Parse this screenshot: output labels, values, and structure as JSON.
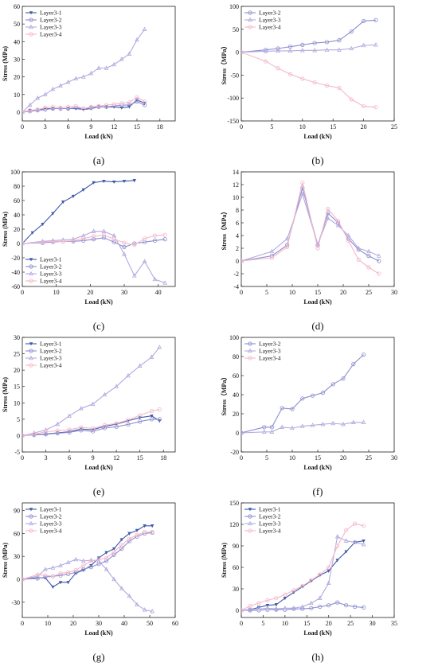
{
  "colors": {
    "Layer3-1": "#3f5aa8",
    "Layer3-2": "#8c8ed0",
    "Layer3-3": "#b3abe0",
    "Layer3-4": "#f4b8cb"
  },
  "chart_data": [
    {
      "panel": "(a)",
      "type": "line",
      "xlabel": "Load (kN)",
      "ylabel": "Stress (MPa)",
      "xlim": [
        0,
        20
      ],
      "ylim": [
        -5,
        60
      ],
      "xticks": [
        0,
        3,
        6,
        9,
        12,
        15,
        18
      ],
      "yticks": [
        0,
        10,
        20,
        30,
        40,
        50,
        60
      ],
      "legend": "top-left",
      "series": [
        {
          "name": "Layer3-1",
          "x": [
            0,
            1,
            2,
            3,
            4,
            5,
            6,
            7,
            8,
            9,
            10,
            11,
            12,
            13,
            14,
            15,
            16
          ],
          "y": [
            0,
            1,
            1,
            2,
            2,
            2,
            2,
            2,
            1.5,
            2,
            3,
            3,
            3,
            2.5,
            3,
            7,
            5
          ]
        },
        {
          "name": "Layer3-2",
          "x": [
            0,
            1,
            2,
            3,
            4,
            5,
            6,
            7,
            8,
            9,
            10,
            11,
            12,
            13,
            14,
            15,
            16
          ],
          "y": [
            0,
            0.5,
            1,
            1.5,
            2,
            2,
            2,
            2.5,
            2,
            2.5,
            3,
            3,
            3.5,
            4,
            4,
            6,
            4
          ]
        },
        {
          "name": "Layer3-3",
          "x": [
            0,
            1,
            2,
            3,
            4,
            5,
            6,
            7,
            8,
            9,
            10,
            11,
            12,
            13,
            14,
            15,
            16
          ],
          "y": [
            0,
            4,
            8,
            10,
            13,
            15,
            17,
            19,
            20,
            22,
            25,
            25,
            27,
            30,
            33,
            41,
            47
          ]
        },
        {
          "name": "Layer3-4",
          "x": [
            0,
            1,
            2,
            3,
            4,
            5,
            6,
            7,
            8,
            9,
            10,
            11,
            12,
            13,
            14,
            15,
            16
          ],
          "y": [
            0,
            1,
            1.5,
            2.5,
            3,
            2.5,
            3,
            3.5,
            2,
            3,
            3.5,
            4,
            4.5,
            5,
            5.5,
            8.5,
            6
          ]
        }
      ]
    },
    {
      "panel": "(b)",
      "type": "line",
      "xlabel": "Load (kN)",
      "ylabel": "Stress（MPa）",
      "xlim": [
        0,
        25
      ],
      "ylim": [
        -150,
        100
      ],
      "xticks": [
        0,
        5,
        10,
        15,
        20,
        25
      ],
      "yticks": [
        -150,
        -100,
        -50,
        0,
        50,
        100
      ],
      "legend": "top-left",
      "series": [
        {
          "name": "Layer3-2",
          "x": [
            0,
            4,
            6,
            8,
            10,
            12,
            14,
            16,
            18,
            20,
            22
          ],
          "y": [
            0,
            5,
            8,
            12,
            16,
            20,
            22,
            26,
            45,
            68,
            70
          ]
        },
        {
          "name": "Layer3-3",
          "x": [
            0,
            4,
            6,
            8,
            10,
            12,
            14,
            16,
            18,
            20,
            22
          ],
          "y": [
            0,
            2,
            3,
            3,
            4,
            4,
            5,
            5,
            8,
            15,
            16
          ]
        },
        {
          "name": "Layer3-4",
          "x": [
            0,
            4,
            6,
            8,
            10,
            12,
            14,
            16,
            18,
            20,
            22
          ],
          "y": [
            0,
            -20,
            -35,
            -48,
            -58,
            -66,
            -73,
            -78,
            -103,
            -118,
            -120
          ]
        }
      ]
    },
    {
      "panel": "(c)",
      "type": "line",
      "xlabel": "Load (kN)",
      "ylabel": "Stress (MPa)",
      "xlim": [
        0,
        45
      ],
      "ylim": [
        -60,
        100
      ],
      "xticks": [
        0,
        10,
        20,
        30,
        40
      ],
      "yticks": [
        -60,
        -40,
        -20,
        0,
        20,
        40,
        60,
        80,
        100
      ],
      "legend": "bottom-left",
      "series": [
        {
          "name": "Layer3-1",
          "x": [
            0,
            3,
            6,
            9,
            12,
            15,
            18,
            21,
            24,
            27,
            30,
            33
          ],
          "y": [
            0,
            15,
            27,
            42,
            58,
            66,
            75,
            85,
            87,
            86,
            87,
            88
          ]
        },
        {
          "name": "Layer3-2",
          "x": [
            0,
            6,
            9,
            12,
            15,
            18,
            21,
            24,
            27,
            30,
            33,
            36,
            39,
            42
          ],
          "y": [
            0,
            1,
            2,
            3,
            3,
            4,
            6,
            8,
            2,
            -5,
            0,
            2,
            4,
            6
          ]
        },
        {
          "name": "Layer3-3",
          "x": [
            0,
            6,
            9,
            12,
            15,
            18,
            21,
            24,
            27,
            30,
            33,
            36,
            39,
            42
          ],
          "y": [
            0,
            3,
            4,
            5,
            6,
            11,
            17,
            17,
            11,
            -15,
            -45,
            -25,
            -50,
            -55
          ]
        },
        {
          "name": "Layer3-4",
          "x": [
            0,
            6,
            9,
            12,
            15,
            18,
            21,
            24,
            27,
            30,
            33,
            36,
            39,
            42
          ],
          "y": [
            0,
            2,
            3,
            3,
            4,
            7,
            10,
            12,
            6,
            1,
            -2,
            7,
            11,
            12
          ]
        }
      ]
    },
    {
      "panel": "(d)",
      "type": "line",
      "xlabel": "Load (kN)",
      "ylabel": "Stress（MPa）",
      "xlim": [
        0,
        30
      ],
      "ylim": [
        -4,
        14
      ],
      "xticks": [
        0,
        5,
        10,
        15,
        20,
        25,
        30
      ],
      "yticks": [
        -4,
        -2,
        0,
        2,
        4,
        6,
        8,
        10,
        12,
        14
      ],
      "legend": "none",
      "series": [
        {
          "name": "Layer3-2",
          "x": [
            0,
            6,
            9,
            12,
            15,
            17,
            19,
            21,
            23,
            25,
            27
          ],
          "y": [
            0,
            0.8,
            2.5,
            11.5,
            2.5,
            7.5,
            6,
            3.5,
            1.8,
            0.8,
            0
          ]
        },
        {
          "name": "Layer3-3",
          "x": [
            0,
            6,
            9,
            12,
            15,
            17,
            19,
            21,
            23,
            25,
            27
          ],
          "y": [
            0,
            1.5,
            3.5,
            10.5,
            2.6,
            6.7,
            5.6,
            4,
            2,
            1.5,
            0.8
          ]
        },
        {
          "name": "Layer3-4",
          "x": [
            0,
            6,
            9,
            12,
            15,
            17,
            19,
            21,
            23,
            25,
            27
          ],
          "y": [
            0,
            0.5,
            2.2,
            12.3,
            2,
            8.2,
            6.3,
            3.2,
            0.2,
            -1,
            -2
          ]
        }
      ]
    },
    {
      "panel": "(e)",
      "type": "line",
      "xlabel": "Load (kN)",
      "ylabel": "Stress (MPa)",
      "xlim": [
        0,
        19.5
      ],
      "ylim": [
        -5,
        30
      ],
      "xticks": [
        0,
        3,
        6,
        9,
        12,
        15,
        18
      ],
      "yticks": [
        -5,
        0,
        5,
        10,
        15,
        20,
        25,
        30
      ],
      "legend": "top-left",
      "series": [
        {
          "name": "Layer3-1",
          "x": [
            0,
            1.5,
            3,
            4.5,
            6,
            7.5,
            9,
            10.5,
            12,
            13.5,
            15,
            16.5,
            17.5
          ],
          "y": [
            0,
            0.3,
            0.5,
            0.8,
            1.2,
            2,
            1.8,
            2.8,
            3.5,
            4.5,
            5.5,
            6,
            4.5
          ]
        },
        {
          "name": "Layer3-2",
          "x": [
            0,
            1.5,
            3,
            4.5,
            6,
            7.5,
            9,
            10.5,
            12,
            13.5,
            15,
            16.5,
            17.5
          ],
          "y": [
            0,
            0.2,
            0.4,
            0.7,
            1,
            1.6,
            1.3,
            2.3,
            2.7,
            3.4,
            4.3,
            5,
            5
          ]
        },
        {
          "name": "Layer3-3",
          "x": [
            0,
            1.5,
            3,
            4.5,
            6,
            7.5,
            9,
            10.5,
            12,
            13.5,
            15,
            16.5,
            17.5
          ],
          "y": [
            0,
            0.8,
            1.7,
            3.5,
            6,
            8.3,
            9.6,
            12.5,
            15,
            18.3,
            21.3,
            24,
            27
          ]
        },
        {
          "name": "Layer3-4",
          "x": [
            0,
            1.5,
            3,
            4.5,
            6,
            7.5,
            9,
            10.5,
            12,
            13.5,
            15,
            16.5,
            17.5
          ],
          "y": [
            0,
            0.4,
            1.2,
            1.5,
            1.8,
            2.5,
            2.2,
            3.2,
            3.7,
            4.8,
            6.2,
            7.5,
            8
          ]
        }
      ]
    },
    {
      "panel": "(f)",
      "type": "line",
      "xlabel": "Load (kN)",
      "ylabel": "Stress（MPa）",
      "xlim": [
        0,
        30
      ],
      "ylim": [
        -20,
        100
      ],
      "xticks": [
        0,
        5,
        10,
        15,
        20,
        25,
        30
      ],
      "yticks": [
        -20,
        0,
        20,
        40,
        60,
        80,
        100
      ],
      "legend": "top-left",
      "series": [
        {
          "name": "Layer3-2",
          "x": [
            0,
            4.5,
            6,
            8,
            10,
            12,
            14,
            16,
            18,
            20,
            22,
            24
          ],
          "y": [
            0,
            6,
            6,
            26,
            25,
            36,
            39,
            42,
            51,
            57,
            72,
            82
          ]
        },
        {
          "name": "Layer3-3",
          "x": [
            0,
            4.5,
            6,
            8,
            10,
            12,
            14,
            16,
            18,
            20,
            22,
            24
          ],
          "y": [
            0,
            1,
            1,
            6,
            5,
            7,
            8,
            9,
            10,
            9,
            11,
            11
          ]
        },
        {
          "name": "Layer3-4",
          "x": [],
          "y": []
        }
      ]
    },
    {
      "panel": "(g)",
      "type": "line",
      "xlabel": "Load (kN)",
      "ylabel": "Stress (MPa)",
      "xlim": [
        0,
        60
      ],
      "ylim": [
        -50,
        100
      ],
      "xticks": [
        0,
        10,
        20,
        30,
        40,
        50,
        60
      ],
      "yticks": [
        -30,
        0,
        30,
        60,
        90
      ],
      "legend": "top-left",
      "series": [
        {
          "name": "Layer3-1",
          "x": [
            0,
            6,
            9,
            12,
            15,
            18,
            21,
            24,
            27,
            30,
            33,
            36,
            39,
            42,
            45,
            48,
            51
          ],
          "y": [
            0,
            2,
            2,
            -10,
            -4,
            -4,
            8,
            12,
            18,
            28,
            35,
            40,
            52,
            60,
            64,
            70,
            70
          ]
        },
        {
          "name": "Layer3-2",
          "x": [
            0,
            6,
            9,
            12,
            15,
            18,
            21,
            24,
            27,
            30,
            33,
            36,
            39,
            42,
            45,
            48,
            51
          ],
          "y": [
            0,
            1,
            3,
            4,
            5,
            7,
            9,
            13,
            16,
            20,
            24,
            32,
            40,
            50,
            56,
            60,
            61
          ]
        },
        {
          "name": "Layer3-3",
          "x": [
            0,
            6,
            9,
            12,
            15,
            18,
            21,
            24,
            27,
            30,
            33,
            36,
            39,
            42,
            45,
            48,
            51
          ],
          "y": [
            0,
            4,
            13,
            15,
            18,
            22,
            26,
            24,
            25,
            24,
            13,
            0,
            -12,
            -22,
            -33,
            -40,
            -42
          ]
        },
        {
          "name": "Layer3-4",
          "x": [
            0,
            6,
            9,
            12,
            15,
            18,
            21,
            24,
            27,
            30,
            33,
            36,
            39,
            42,
            45,
            48,
            51
          ],
          "y": [
            0,
            6,
            5,
            4,
            8,
            9,
            12,
            18,
            24,
            26,
            28,
            36,
            45,
            53,
            58,
            62,
            62
          ]
        }
      ]
    },
    {
      "panel": "(h)",
      "type": "line",
      "xlabel": "Load (kN)",
      "ylabel": "Stress (MPa)",
      "xlim": [
        0,
        35
      ],
      "ylim": [
        -10,
        150
      ],
      "xticks": [
        0,
        5,
        10,
        15,
        20,
        25,
        30,
        35
      ],
      "yticks": [
        0,
        30,
        60,
        90,
        120,
        150
      ],
      "legend": "top-left",
      "series": [
        {
          "name": "Layer3-1",
          "x": [
            0,
            2,
            4,
            6,
            8,
            10,
            12,
            14,
            16,
            18,
            20,
            22,
            24,
            26,
            28
          ],
          "y": [
            0,
            1,
            4,
            7,
            8,
            17,
            25,
            33,
            41,
            49,
            55,
            70,
            82,
            95,
            97
          ]
        },
        {
          "name": "Layer3-2",
          "x": [
            0,
            2,
            4,
            6,
            8,
            10,
            12,
            14,
            16,
            18,
            20,
            22,
            24,
            26,
            28
          ],
          "y": [
            0,
            0,
            0,
            1,
            1,
            1,
            2,
            2,
            3,
            5,
            7,
            11,
            7,
            5,
            4
          ]
        },
        {
          "name": "Layer3-3",
          "x": [
            0,
            2,
            4,
            6,
            8,
            10,
            12,
            14,
            16,
            18,
            20,
            22,
            24,
            26,
            28
          ],
          "y": [
            0,
            1,
            2,
            3,
            2,
            3,
            3,
            5,
            10,
            17,
            38,
            103,
            97,
            95,
            92
          ]
        },
        {
          "name": "Layer3-4",
          "x": [
            0,
            2,
            4,
            6,
            8,
            10,
            12,
            14,
            16,
            18,
            20,
            22,
            24,
            26,
            28
          ],
          "y": [
            0,
            6,
            10,
            14,
            17,
            22,
            28,
            34,
            42,
            50,
            60,
            90,
            112,
            121,
            118
          ]
        }
      ]
    }
  ]
}
